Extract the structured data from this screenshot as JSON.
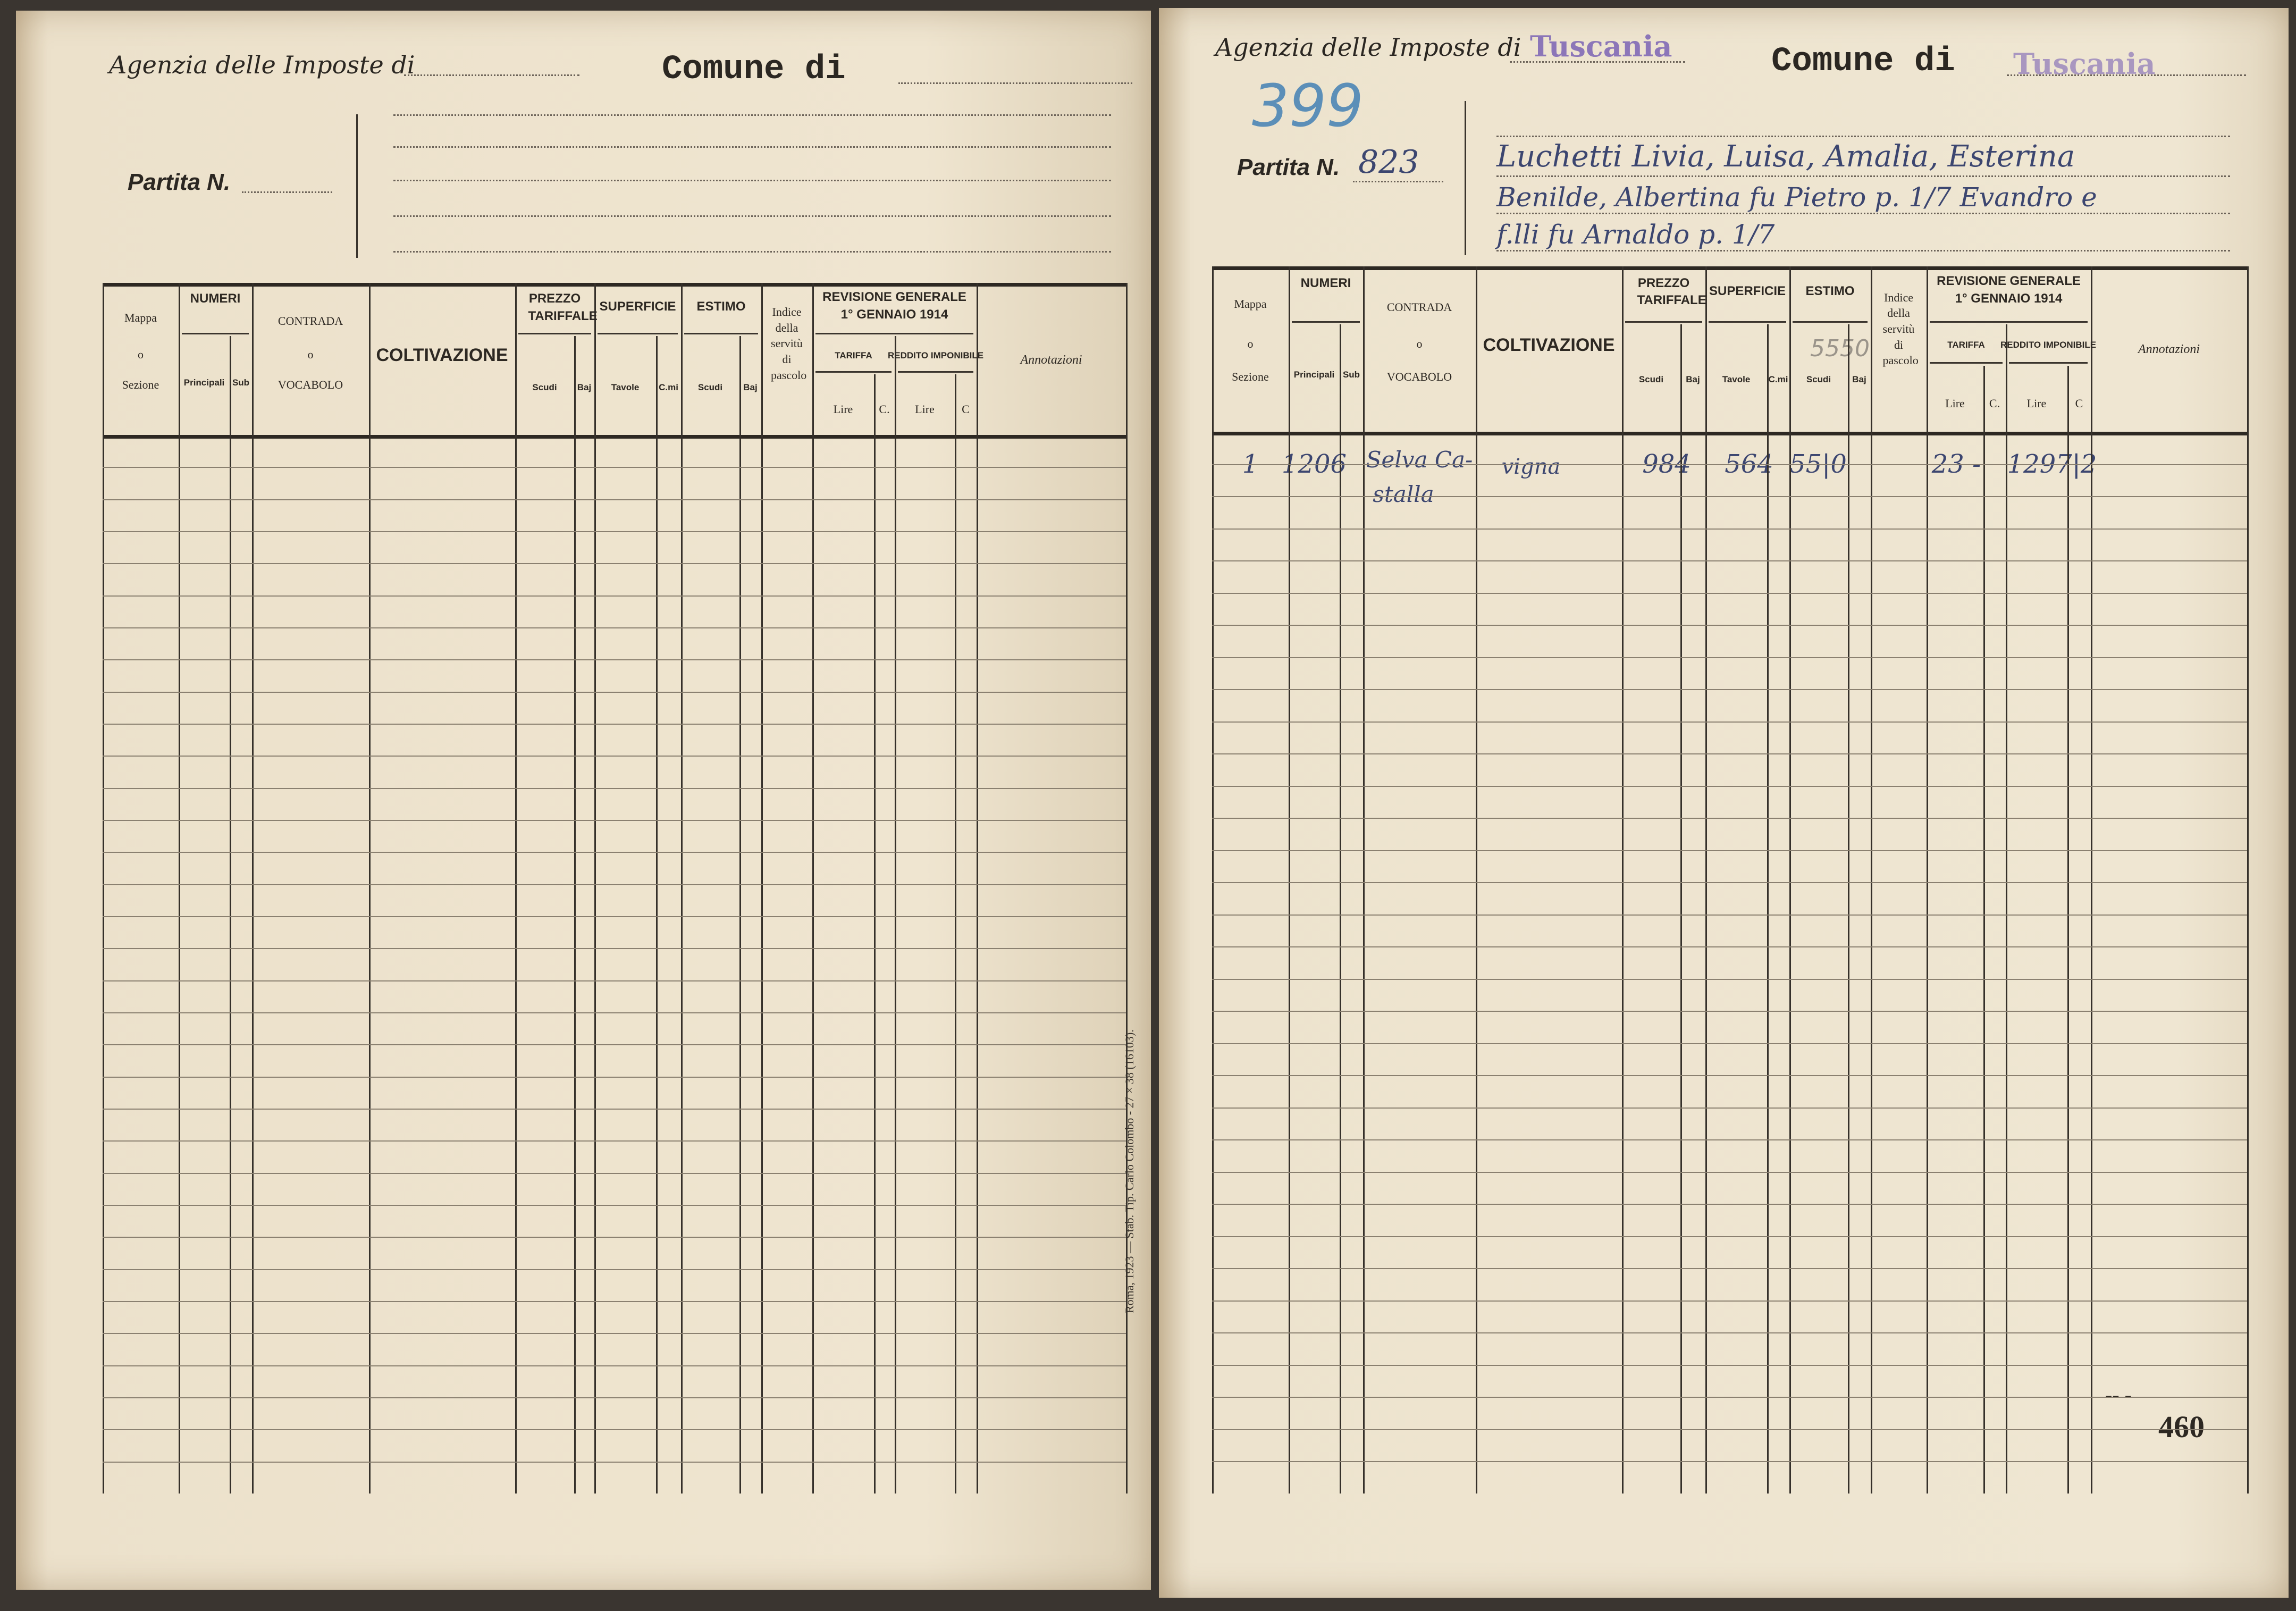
{
  "form": {
    "agenzia_label": "Agenzia delle Imposte di",
    "comune_label": "Comune di",
    "partita_label": "Partita N."
  },
  "table_header": {
    "mappa": "Mappa",
    "mappa_o": "o",
    "sezione": "Sezione",
    "numeri": "NUMERI",
    "principali": "Principali",
    "sub": "Sub",
    "contrada": "CONTRADA",
    "contrada_o": "o",
    "vocabolo": "VOCABOLO",
    "coltivazione": "COLTIVAZIONE",
    "prezzo_tariffale": "PREZZO TARIFFALE",
    "scudi": "Scudi",
    "baj": "Baj",
    "superficie": "SUPERFICIE",
    "tavole": "Tavole",
    "cmi": "C.mi",
    "estimo": "ESTIMO",
    "estimo_scudi": "Scudi",
    "estimo_baj": "Baj",
    "indice": "Indice della servitù di pascolo",
    "revisione": "REVISIONE GENERALE 1° GENNAIO 1914",
    "tariffa": "TARIFFA",
    "reddito": "REDDITO IMPONIBILE",
    "lire": "Lire",
    "c_dot": "C.",
    "lire2": "Lire",
    "c": "C",
    "annotazioni": "Annotazioni"
  },
  "right_page": {
    "agenzia_stamp": "Tuscania",
    "comune_stamp": "Tuscania",
    "pencil_number": "399",
    "partita_number": "823",
    "owner_lines": [
      "Luchetti Livia, Luisa, Amalia, Esterina",
      "Benilde, Albertina fu Pietro p. 1/7 Evandro e",
      "f.lli fu Arnaldo p. 1/7"
    ],
    "pencil_estimo_note": "5550",
    "entry": {
      "mappa": "1",
      "principali": "1206",
      "contrada": [
        "Selva Ca-",
        "stalla"
      ],
      "coltivazione": "vigna",
      "prezzo": "984",
      "superficie": "564",
      "estimo": "55|0",
      "tariffa": "23 -",
      "reddito": "1297|2"
    },
    "page_number": "460",
    "page_dashes": "-- -"
  },
  "printer_note": "Roma, 1923 — Stab. Tip. Carlo Colombo - 27 × 38 (16103)."
}
